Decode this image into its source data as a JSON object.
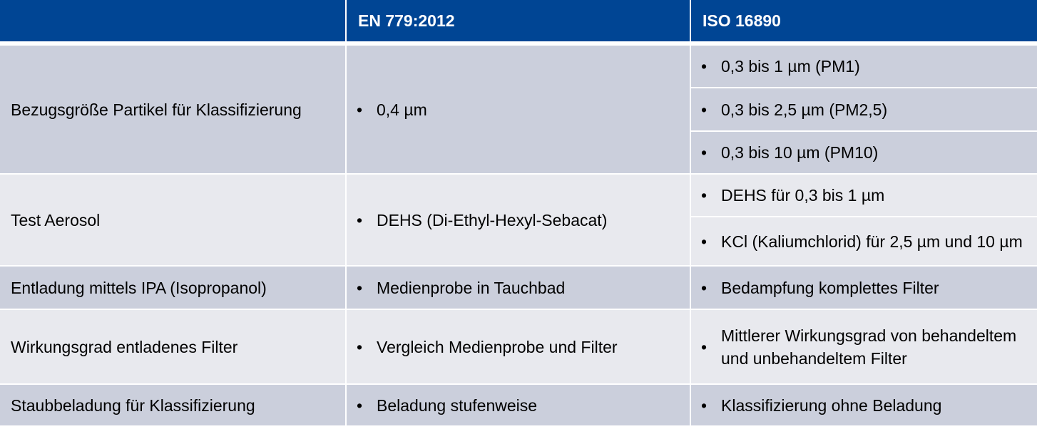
{
  "header": {
    "col0": "",
    "col1": "EN 779:2012",
    "col2": "ISO 16890"
  },
  "rows": [
    {
      "label": "Bezugsgröße Partikel für Klassifizierung",
      "en": [
        "0,4 µm"
      ],
      "iso": [
        "0,3 bis 1 µm (PM1)",
        "0,3 bis 2,5 µm (PM2,5)",
        "0,3 bis 10 µm (PM10)"
      ]
    },
    {
      "label": "Test Aerosol",
      "en": [
        "DEHS (Di-Ethyl-Hexyl-Sebacat)"
      ],
      "iso": [
        "DEHS für 0,3 bis 1 µm",
        "KCl (Kaliumchlorid) für 2,5 µm und 10 µm"
      ]
    },
    {
      "label": "Entladung mittels IPA (Isopropanol)",
      "en": [
        "Medienprobe in Tauchbad"
      ],
      "iso": [
        "Bedampfung komplettes Filter"
      ]
    },
    {
      "label": "Wirkungsgrad entladenes Filter",
      "en": [
        "Vergleich Medienprobe und Filter"
      ],
      "iso": [
        "Mittlerer Wirkungsgrad von behandeltem und unbehandeltem Filter"
      ]
    },
    {
      "label": "Staubbeladung für Klassifizierung",
      "en": [
        "Beladung stufenweise"
      ],
      "iso": [
        "Klassifizierung ohne Beladung"
      ]
    }
  ],
  "bullet": "•",
  "colors": {
    "header": "#004594",
    "row_dark": "#cbcfdc",
    "row_light": "#e8e9ee"
  }
}
